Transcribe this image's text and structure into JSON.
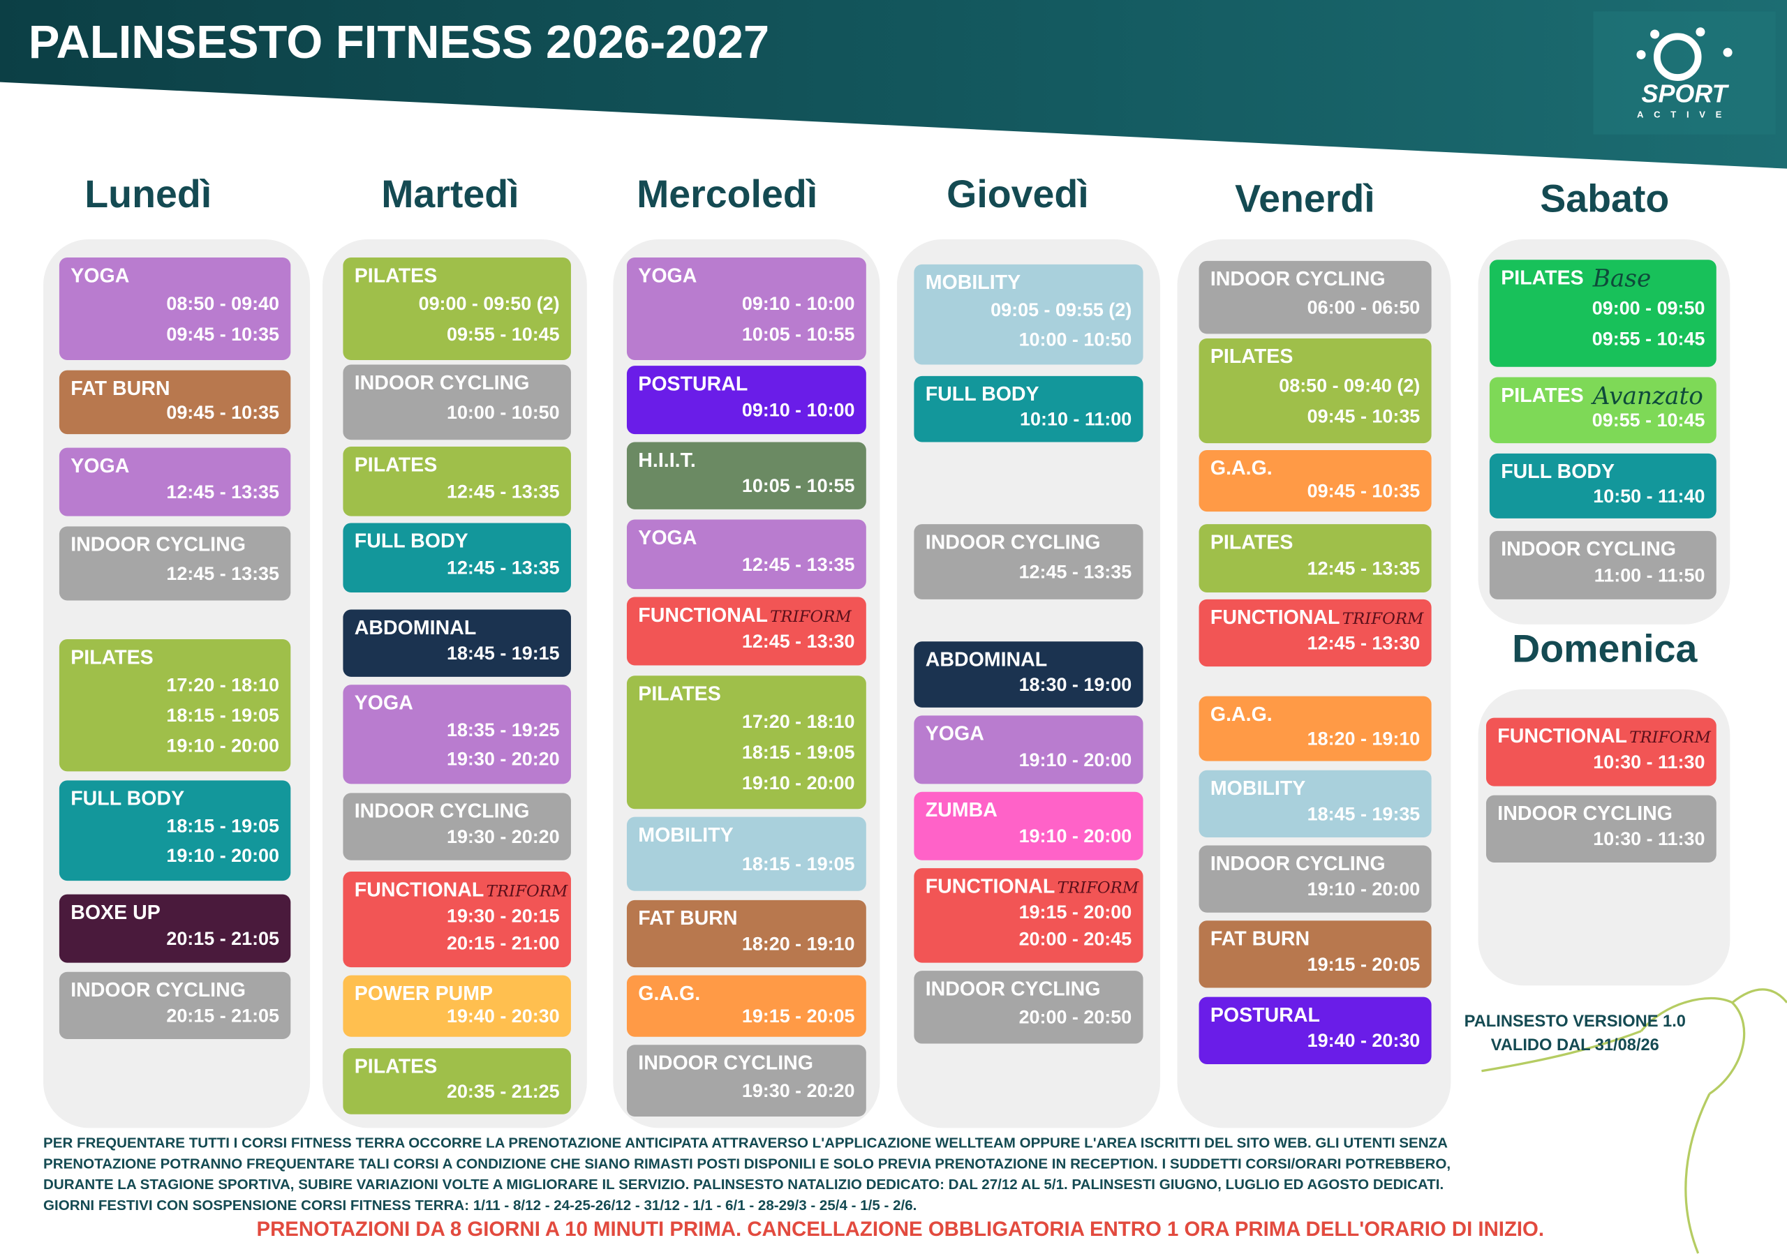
{
  "header": {
    "title": "PALINSESTO FITNESS 2026-2027",
    "logo": {
      "name": "SPORT",
      "subtitle": "ACTIVE"
    }
  },
  "days": [
    {
      "name": "Lunedì",
      "classes": [
        {
          "name": "YOGA",
          "color": "#b97ccf",
          "times": [
            "08:50 - 09:40",
            "09:45 - 10:35"
          ]
        },
        {
          "name": "FAT BURN",
          "color": "#b8784e",
          "times": [
            "09:45 - 10:35"
          ]
        },
        {
          "name": "YOGA",
          "color": "#b97ccf",
          "times": [
            "12:45 - 13:35"
          ]
        },
        {
          "name": "INDOOR CYCLING",
          "color": "#a6a6a6",
          "times": [
            "12:45 - 13:35"
          ]
        },
        {
          "name": "PILATES",
          "color": "#9fbf4a",
          "times": [
            "17:20 - 18:10",
            "18:15 - 19:05",
            "19:10 - 20:00"
          ]
        },
        {
          "name": "FULL BODY",
          "color": "#13979b",
          "times": [
            "18:15 - 19:05",
            "19:10 - 20:00"
          ]
        },
        {
          "name": "BOXE UP",
          "color": "#4a1a3c",
          "times": [
            "20:15 - 21:05"
          ]
        },
        {
          "name": "INDOOR CYCLING",
          "color": "#a6a6a6",
          "times": [
            "20:15 - 21:05"
          ]
        }
      ]
    },
    {
      "name": "Martedì",
      "classes": [
        {
          "name": "PILATES",
          "color": "#9fbf4a",
          "times": [
            "09:00 - 09:50 (2)",
            "09:55 - 10:45"
          ]
        },
        {
          "name": "INDOOR CYCLING",
          "color": "#a6a6a6",
          "times": [
            "10:00 - 10:50"
          ]
        },
        {
          "name": "PILATES",
          "color": "#9fbf4a",
          "times": [
            "12:45 - 13:35"
          ]
        },
        {
          "name": "FULL BODY",
          "color": "#13979b",
          "times": [
            "12:45 - 13:35"
          ]
        },
        {
          "name": "ABDOMINAL",
          "color": "#1b3350",
          "times": [
            "18:45 - 19:15"
          ]
        },
        {
          "name": "YOGA",
          "color": "#b97ccf",
          "times": [
            "18:35 - 19:25",
            "19:30 - 20:20"
          ]
        },
        {
          "name": "INDOOR CYCLING",
          "color": "#a6a6a6",
          "times": [
            "19:30 - 20:20"
          ]
        },
        {
          "name": "FUNCTIONAL",
          "note": "TRIFORM",
          "color": "#f25555",
          "times": [
            "19:30 - 20:15",
            "20:15 - 21:00"
          ]
        },
        {
          "name": "POWER PUMP",
          "color": "#ffbf4f",
          "times": [
            "19:40 - 20:30"
          ]
        },
        {
          "name": "PILATES",
          "color": "#9fbf4a",
          "times": [
            "20:35 - 21:25"
          ]
        }
      ]
    },
    {
      "name": "Mercoledì",
      "classes": [
        {
          "name": "YOGA",
          "color": "#b97ccf",
          "times": [
            "09:10 - 10:00",
            "10:05 - 10:55"
          ]
        },
        {
          "name": "POSTURAL",
          "color": "#6a1de8",
          "times": [
            "09:10 - 10:00"
          ]
        },
        {
          "name": "H.I.I.T.",
          "color": "#6b8a63",
          "times": [
            "10:05 - 10:55"
          ]
        },
        {
          "name": "YOGA",
          "color": "#b97ccf",
          "times": [
            "12:45 - 13:35"
          ]
        },
        {
          "name": "FUNCTIONAL",
          "note": "TRIFORM",
          "color": "#f25555",
          "times": [
            "12:45 - 13:30"
          ]
        },
        {
          "name": "PILATES",
          "color": "#9fbf4a",
          "times": [
            "17:20 - 18:10",
            "18:15 - 19:05",
            "19:10 - 20:00"
          ]
        },
        {
          "name": "MOBILITY",
          "color": "#a9d0dc",
          "times": [
            "18:15 - 19:05"
          ]
        },
        {
          "name": "FAT BURN",
          "color": "#b8784e",
          "times": [
            "18:20 - 19:10"
          ]
        },
        {
          "name": "G.A.G.",
          "color": "#ff9a46",
          "times": [
            "19:15 - 20:05"
          ]
        },
        {
          "name": "INDOOR CYCLING",
          "color": "#a6a6a6",
          "times": [
            "19:30 - 20:20"
          ]
        }
      ]
    },
    {
      "name": "Giovedì",
      "classes": [
        {
          "name": "MOBILITY",
          "color": "#a9d0dc",
          "times": [
            "09:05 - 09:55 (2)",
            "10:00 - 10:50"
          ]
        },
        {
          "name": "FULL BODY",
          "color": "#13979b",
          "times": [
            "10:10 - 11:00"
          ]
        },
        {
          "name": "INDOOR CYCLING",
          "color": "#a6a6a6",
          "times": [
            "12:45 - 13:35"
          ]
        },
        {
          "name": "ABDOMINAL",
          "color": "#1b3350",
          "times": [
            "18:30 - 19:00"
          ]
        },
        {
          "name": "YOGA",
          "color": "#b97ccf",
          "times": [
            "19:10 - 20:00"
          ]
        },
        {
          "name": "ZUMBA",
          "color": "#ff62c8",
          "times": [
            "19:10 - 20:00"
          ]
        },
        {
          "name": "FUNCTIONAL",
          "note": "TRIFORM",
          "color": "#f25555",
          "times": [
            "19:15 - 20:00",
            "20:00 - 20:45"
          ]
        },
        {
          "name": "INDOOR CYCLING",
          "color": "#a6a6a6",
          "times": [
            "20:00 - 20:50"
          ]
        }
      ]
    },
    {
      "name": "Venerdì",
      "classes": [
        {
          "name": "INDOOR CYCLING",
          "color": "#a6a6a6",
          "times": [
            "06:00 - 06:50"
          ]
        },
        {
          "name": "PILATES",
          "color": "#9fbf4a",
          "times": [
            "08:50 - 09:40 (2)",
            "09:45 - 10:35"
          ]
        },
        {
          "name": "G.A.G.",
          "color": "#ff9a46",
          "times": [
            "09:45 - 10:35"
          ]
        },
        {
          "name": "PILATES",
          "color": "#9fbf4a",
          "times": [
            "12:45 - 13:35"
          ]
        },
        {
          "name": "FUNCTIONAL",
          "note": "TRIFORM",
          "color": "#f25555",
          "times": [
            "12:45 - 13:30"
          ]
        },
        {
          "name": "G.A.G.",
          "color": "#ff9a46",
          "times": [
            "18:20 - 19:10"
          ]
        },
        {
          "name": "MOBILITY",
          "color": "#a9d0dc",
          "times": [
            "18:45 - 19:35"
          ]
        },
        {
          "name": "INDOOR CYCLING",
          "color": "#a6a6a6",
          "times": [
            "19:10 - 20:00"
          ]
        },
        {
          "name": "FAT BURN",
          "color": "#b8784e",
          "times": [
            "19:15 - 20:05"
          ]
        },
        {
          "name": "POSTURAL",
          "color": "#6a1de8",
          "times": [
            "19:40 - 20:30"
          ]
        }
      ]
    },
    {
      "name": "Sabato",
      "classes": [
        {
          "name": "PILATES",
          "note": "Base",
          "color": "#18c15a",
          "times": [
            "09:00 - 09:50",
            "09:55 - 10:45"
          ]
        },
        {
          "name": "PILATES",
          "note": "Avanzato",
          "color": "#7ed957",
          "times": [
            "09:55 - 10:45"
          ]
        },
        {
          "name": "FULL BODY",
          "color": "#13979b",
          "times": [
            "10:50 - 11:40"
          ]
        },
        {
          "name": "INDOOR CYCLING",
          "color": "#a6a6a6",
          "times": [
            "11:00 - 11:50"
          ]
        }
      ]
    },
    {
      "name": "Domenica",
      "classes": [
        {
          "name": "FUNCTIONAL",
          "note": "TRIFORM",
          "color": "#f25555",
          "times": [
            "10:30 - 11:30"
          ]
        },
        {
          "name": "INDOOR CYCLING",
          "color": "#a6a6a6",
          "times": [
            "10:30 - 11:30"
          ]
        }
      ]
    }
  ],
  "version": [
    "PALINSESTO VERSIONE 1.0",
    "VALIDO DAL 31/08/26"
  ],
  "footer": {
    "notes": [
      "PER FREQUENTARE TUTTI I CORSI FITNESS TERRA OCCORRE LA PRENOTAZIONE ANTICIPATA ATTRAVERSO L'APPLICAZIONE WELLTEAM OPPURE L'AREA ISCRITTI DEL SITO WEB. GLI UTENTI SENZA",
      "PRENOTAZIONE POTRANNO FREQUENTARE TALI CORSI A CONDIZIONE CHE SIANO RIMASTI POSTI DISPONILI E SOLO PREVIA PRENOTAZIONE IN RECEPTION. I SUDDETTI CORSI/ORARI POTREBBERO,",
      "DURANTE LA STAGIONE SPORTIVA, SUBIRE VARIAZIONI VOLTE A MIGLIORARE IL SERVIZIO.  PALINSESTO NATALIZIO DEDICATO:  DAL 27/12 AL 5/1. PALINSESTI GIUGNO, LUGLIO ED AGOSTO DEDICATI.",
      "GIORNI FESTIVI CON SOSPENSIONE CORSI  FITNESS TERRA:  1/11  -  8/12  -  24-25-26/12  -  31/12  -  1/1  -  6/1  -  28-29/3  -  25/4  -  1/5  -  2/6."
    ],
    "warning": "PRENOTAZIONI DA 8 GIORNI A 10 MINUTI PRIMA.   CANCELLAZIONE OBBLIGATORIA ENTRO 1 ORA PRIMA DELL'ORARIO DI INIZIO."
  }
}
